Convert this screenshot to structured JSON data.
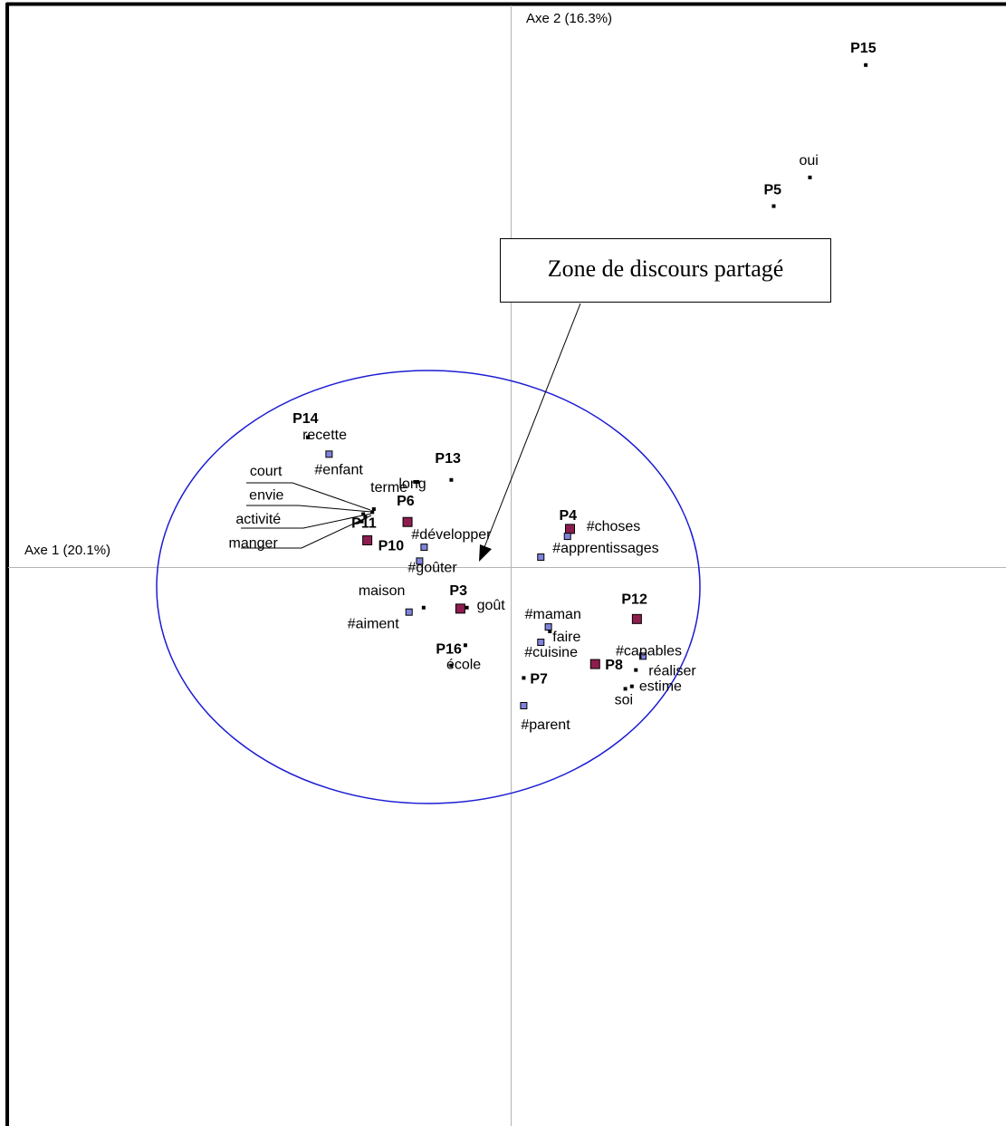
{
  "chart_data": {
    "type": "scatter",
    "title": "",
    "xlabel": "Axe 1 (20.1%)",
    "ylabel": "Axe 2 (16.3%)",
    "xlim": [
      -1.0,
      1.0
    ],
    "ylim": [
      -1.14,
      1.14
    ],
    "grid": false,
    "legend": "none",
    "colors": {
      "frame": "#000000",
      "axis": "#b4b4b4",
      "ellipse": "#1c1cd4",
      "participant": "#8e1d4f",
      "category": "#7f83d9",
      "word": "#000000"
    },
    "annotation": {
      "text": "Zone de discours partagé",
      "arrow_to": [
        -0.06,
        0.02
      ]
    },
    "series": [
      {
        "kind": "participant",
        "points": [
          {
            "label": "P15",
            "x": 0.705,
            "y": 1.015,
            "marker": "dot"
          },
          {
            "label": "P5",
            "x": 0.522,
            "y": 0.73,
            "marker": "dot"
          },
          {
            "label": "P14",
            "x": -0.404,
            "y": 0.263,
            "marker": "dot"
          },
          {
            "label": "P13",
            "x": -0.119,
            "y": 0.177,
            "marker": "dot"
          },
          {
            "label": "P6",
            "x": -0.206,
            "y": 0.092,
            "marker": "square"
          },
          {
            "label": "P11",
            "x": -0.294,
            "y": 0.108,
            "marker": "dot"
          },
          {
            "label": "P10",
            "x": -0.286,
            "y": 0.055,
            "marker": "square"
          },
          {
            "label": "P3",
            "x": -0.101,
            "y": -0.083,
            "marker": "square"
          },
          {
            "label": "P16",
            "x": -0.119,
            "y": -0.198,
            "marker": "dot"
          },
          {
            "label": "P4",
            "x": 0.117,
            "y": 0.078,
            "marker": "square"
          },
          {
            "label": "P12",
            "x": 0.25,
            "y": -0.104,
            "marker": "square"
          },
          {
            "label": "P8",
            "x": 0.167,
            "y": -0.195,
            "marker": "square"
          },
          {
            "label": "P7",
            "x": 0.025,
            "y": -0.223,
            "marker": "dot"
          }
        ]
      },
      {
        "kind": "category",
        "points": [
          {
            "label": "#enfant",
            "x": -0.362,
            "y": 0.229
          },
          {
            "label": "#développer",
            "x": -0.173,
            "y": 0.041
          },
          {
            "label": "#goûter",
            "x": -0.182,
            "y": 0.013
          },
          {
            "label": "#choses",
            "x": 0.112,
            "y": 0.063
          },
          {
            "label": "#apprentissages",
            "x": 0.059,
            "y": 0.021
          },
          {
            "label": "#aiment",
            "x": -0.203,
            "y": -0.09
          },
          {
            "label": "#maman",
            "x": 0.074,
            "y": -0.12
          },
          {
            "label": "#cuisine",
            "x": 0.059,
            "y": -0.151
          },
          {
            "label": "#capables",
            "x": 0.262,
            "y": -0.179
          },
          {
            "label": "#parent",
            "x": 0.025,
            "y": -0.279
          }
        ]
      },
      {
        "kind": "word",
        "points": [
          {
            "label": "oui",
            "x": 0.594,
            "y": 0.788
          },
          {
            "label": "recette",
            "x": -0.404,
            "y": 0.263
          },
          {
            "label": "long",
            "x": -0.191,
            "y": 0.173
          },
          {
            "label": "terme",
            "x": -0.186,
            "y": 0.173
          },
          {
            "label": "court",
            "x": -0.273,
            "y": 0.118
          },
          {
            "label": "envie",
            "x": -0.276,
            "y": 0.112
          },
          {
            "label": "activité",
            "x": -0.29,
            "y": 0.102
          },
          {
            "label": "manger",
            "x": -0.297,
            "y": 0.093
          },
          {
            "label": "maison",
            "x": -0.174,
            "y": -0.081
          },
          {
            "label": "goût",
            "x": -0.088,
            "y": -0.081
          },
          {
            "label": "école",
            "x": -0.091,
            "y": -0.157
          },
          {
            "label": "faire",
            "x": 0.077,
            "y": -0.129
          },
          {
            "label": "réaliser",
            "x": 0.248,
            "y": -0.207
          },
          {
            "label": "estime",
            "x": 0.24,
            "y": -0.24
          },
          {
            "label": "soi",
            "x": 0.227,
            "y": -0.245
          }
        ]
      }
    ]
  }
}
